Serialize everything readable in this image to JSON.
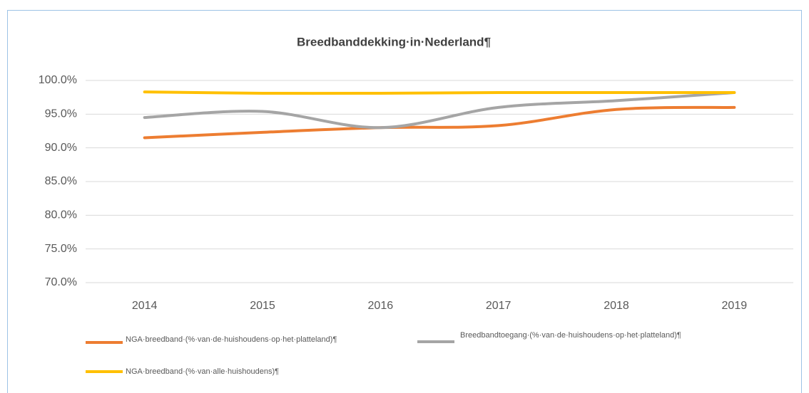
{
  "chart_data": {
    "type": "line",
    "title": "Breedbanddekking·in·Nederland¶",
    "categories": [
      "2014",
      "2015",
      "2016",
      "2017",
      "2018",
      "2019"
    ],
    "series": [
      {
        "name": "NGA·breedband·(%·van·de·huishoudens·op·het·platteland)¶",
        "color": "#ed7d31",
        "values": [
          91.5,
          92.3,
          93.0,
          93.3,
          95.7,
          96.0
        ]
      },
      {
        "name": "Breedbandtoegang·(%·van·de·huishoudens·op·het·platteland)¶",
        "color": "#a5a5a5",
        "values": [
          94.5,
          95.4,
          93.0,
          96.0,
          97.0,
          98.2
        ]
      },
      {
        "name": "NGA·breedband·(%·van·alle·huishoudens)¶",
        "color": "#ffc000",
        "values": [
          98.3,
          98.1,
          98.1,
          98.2,
          98.2,
          98.2
        ]
      }
    ],
    "ylim": [
      70,
      100
    ],
    "yticks": [
      {
        "value": 70,
        "label": "70.0%"
      },
      {
        "value": 75,
        "label": "75.0%"
      },
      {
        "value": 80,
        "label": "80.0%"
      },
      {
        "value": 85,
        "label": "85.0%"
      },
      {
        "value": 90,
        "label": "90.0%"
      },
      {
        "value": 95,
        "label": "95.0%"
      },
      {
        "value": 100,
        "label": "100.0%"
      }
    ],
    "grid": true,
    "smooth": true,
    "legend": "bottom"
  }
}
